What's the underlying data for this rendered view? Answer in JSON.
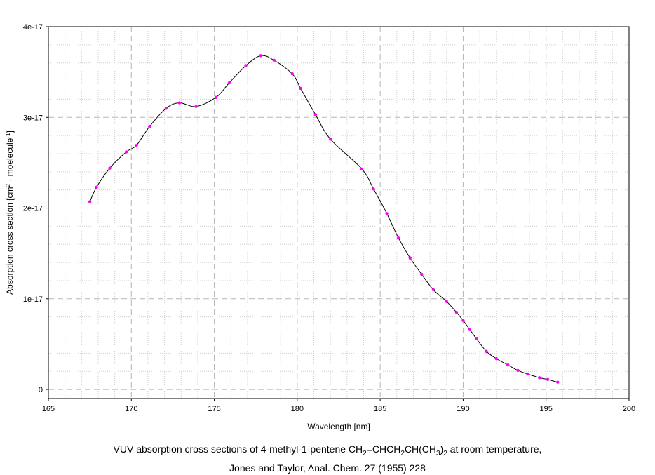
{
  "chart_data": {
    "type": "line",
    "xlabel": "Wavelength [nm]",
    "ylabel": {
      "prefix": "Absorption cross section [cm",
      "sup1": "2",
      "middle": " · moelecule",
      "sup2": "-1",
      "suffix": "]"
    },
    "xlim": [
      165,
      200
    ],
    "ylim": [
      -1e-18,
      4e-17
    ],
    "xticks": [
      165,
      170,
      175,
      180,
      185,
      190,
      195,
      200
    ],
    "yticks": [
      {
        "value": 0,
        "label": "0"
      },
      {
        "value": 1e-17,
        "label": "1e-17"
      },
      {
        "value": 2e-17,
        "label": "2e-17"
      },
      {
        "value": 3e-17,
        "label": "3e-17"
      },
      {
        "value": 4e-17,
        "label": "4e-17"
      }
    ],
    "grid": true,
    "line_color": "#000000",
    "marker_color": "#ff00ff",
    "points": [
      [
        167.5,
        2.07e-17
      ],
      [
        167.9,
        2.23e-17
      ],
      [
        168.7,
        2.44e-17
      ],
      [
        169.7,
        2.62e-17
      ],
      [
        170.3,
        2.69e-17
      ],
      [
        171.1,
        2.9e-17
      ],
      [
        172.1,
        3.1e-17
      ],
      [
        172.9,
        3.16e-17
      ],
      [
        173.9,
        3.12e-17
      ],
      [
        175.1,
        3.22e-17
      ],
      [
        175.9,
        3.38e-17
      ],
      [
        176.9,
        3.57e-17
      ],
      [
        177.8,
        3.68e-17
      ],
      [
        178.6,
        3.63e-17
      ],
      [
        179.7,
        3.48e-17
      ],
      [
        180.2,
        3.32e-17
      ],
      [
        181.1,
        3.03e-17
      ],
      [
        182.0,
        2.76e-17
      ],
      [
        183.9,
        2.43e-17
      ],
      [
        184.6,
        2.21e-17
      ],
      [
        185.4,
        1.94e-17
      ],
      [
        186.1,
        1.67e-17
      ],
      [
        186.8,
        1.45e-17
      ],
      [
        187.5,
        1.27e-17
      ],
      [
        188.2,
        1.1e-17
      ],
      [
        189.0,
        9.7e-18
      ],
      [
        189.6,
        8.5e-18
      ],
      [
        190.0,
        7.6e-18
      ],
      [
        190.4,
        6.6e-18
      ],
      [
        190.8,
        5.6e-18
      ],
      [
        191.4,
        4.2e-18
      ],
      [
        192.0,
        3.4e-18
      ],
      [
        192.7,
        2.7e-18
      ],
      [
        193.3,
        2.1e-18
      ],
      [
        193.9,
        1.7e-18
      ],
      [
        194.6,
        1.3e-18
      ],
      [
        195.1,
        1.1e-18
      ],
      [
        195.7,
        8e-19
      ]
    ]
  },
  "caption": {
    "line1_a": "VUV absorption cross sections of 4-methyl-1-pentene CH",
    "sub1": "2",
    "line1_b": "=CHCH",
    "sub2": "2",
    "line1_c": "CH(CH",
    "sub3": "3",
    "line1_d": ")",
    "sub4": "2",
    "line1_e": " at room temperature,",
    "line2": "Jones and Taylor, Anal. Chem. 27 (1955) 228"
  }
}
